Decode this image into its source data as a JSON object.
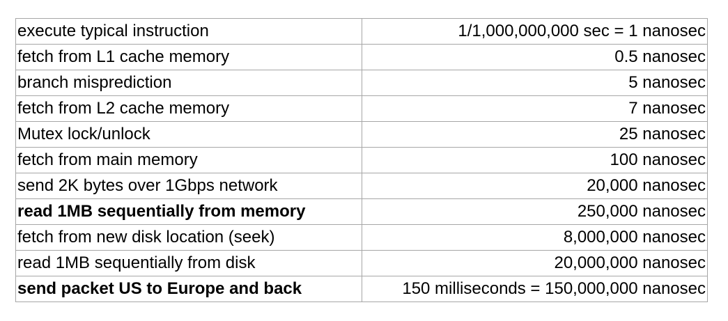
{
  "table": {
    "rows": [
      {
        "operation": "execute typical instruction",
        "time": "1/1,000,000,000 sec = 1 nanosec",
        "bold": false
      },
      {
        "operation": "fetch from L1 cache memory",
        "time": "0.5 nanosec",
        "bold": false
      },
      {
        "operation": "branch misprediction",
        "time": "5 nanosec",
        "bold": false
      },
      {
        "operation": "fetch from L2 cache memory",
        "time": "7 nanosec",
        "bold": false
      },
      {
        "operation": "Mutex lock/unlock",
        "time": "25 nanosec",
        "bold": false
      },
      {
        "operation": "fetch from main memory",
        "time": "100 nanosec",
        "bold": false
      },
      {
        "operation": "send 2K bytes over 1Gbps network",
        "time": "20,000 nanosec",
        "bold": false
      },
      {
        "operation": "read 1MB sequentially from memory",
        "time": "250,000 nanosec",
        "bold": true
      },
      {
        "operation": "fetch from new disk location (seek)",
        "time": "8,000,000 nanosec",
        "bold": false
      },
      {
        "operation": "read 1MB sequentially from disk",
        "time": "20,000,000 nanosec",
        "bold": false
      },
      {
        "operation": "send packet US to Europe and back",
        "time": "150 milliseconds = 150,000,000 nanosec",
        "bold": true
      }
    ]
  }
}
